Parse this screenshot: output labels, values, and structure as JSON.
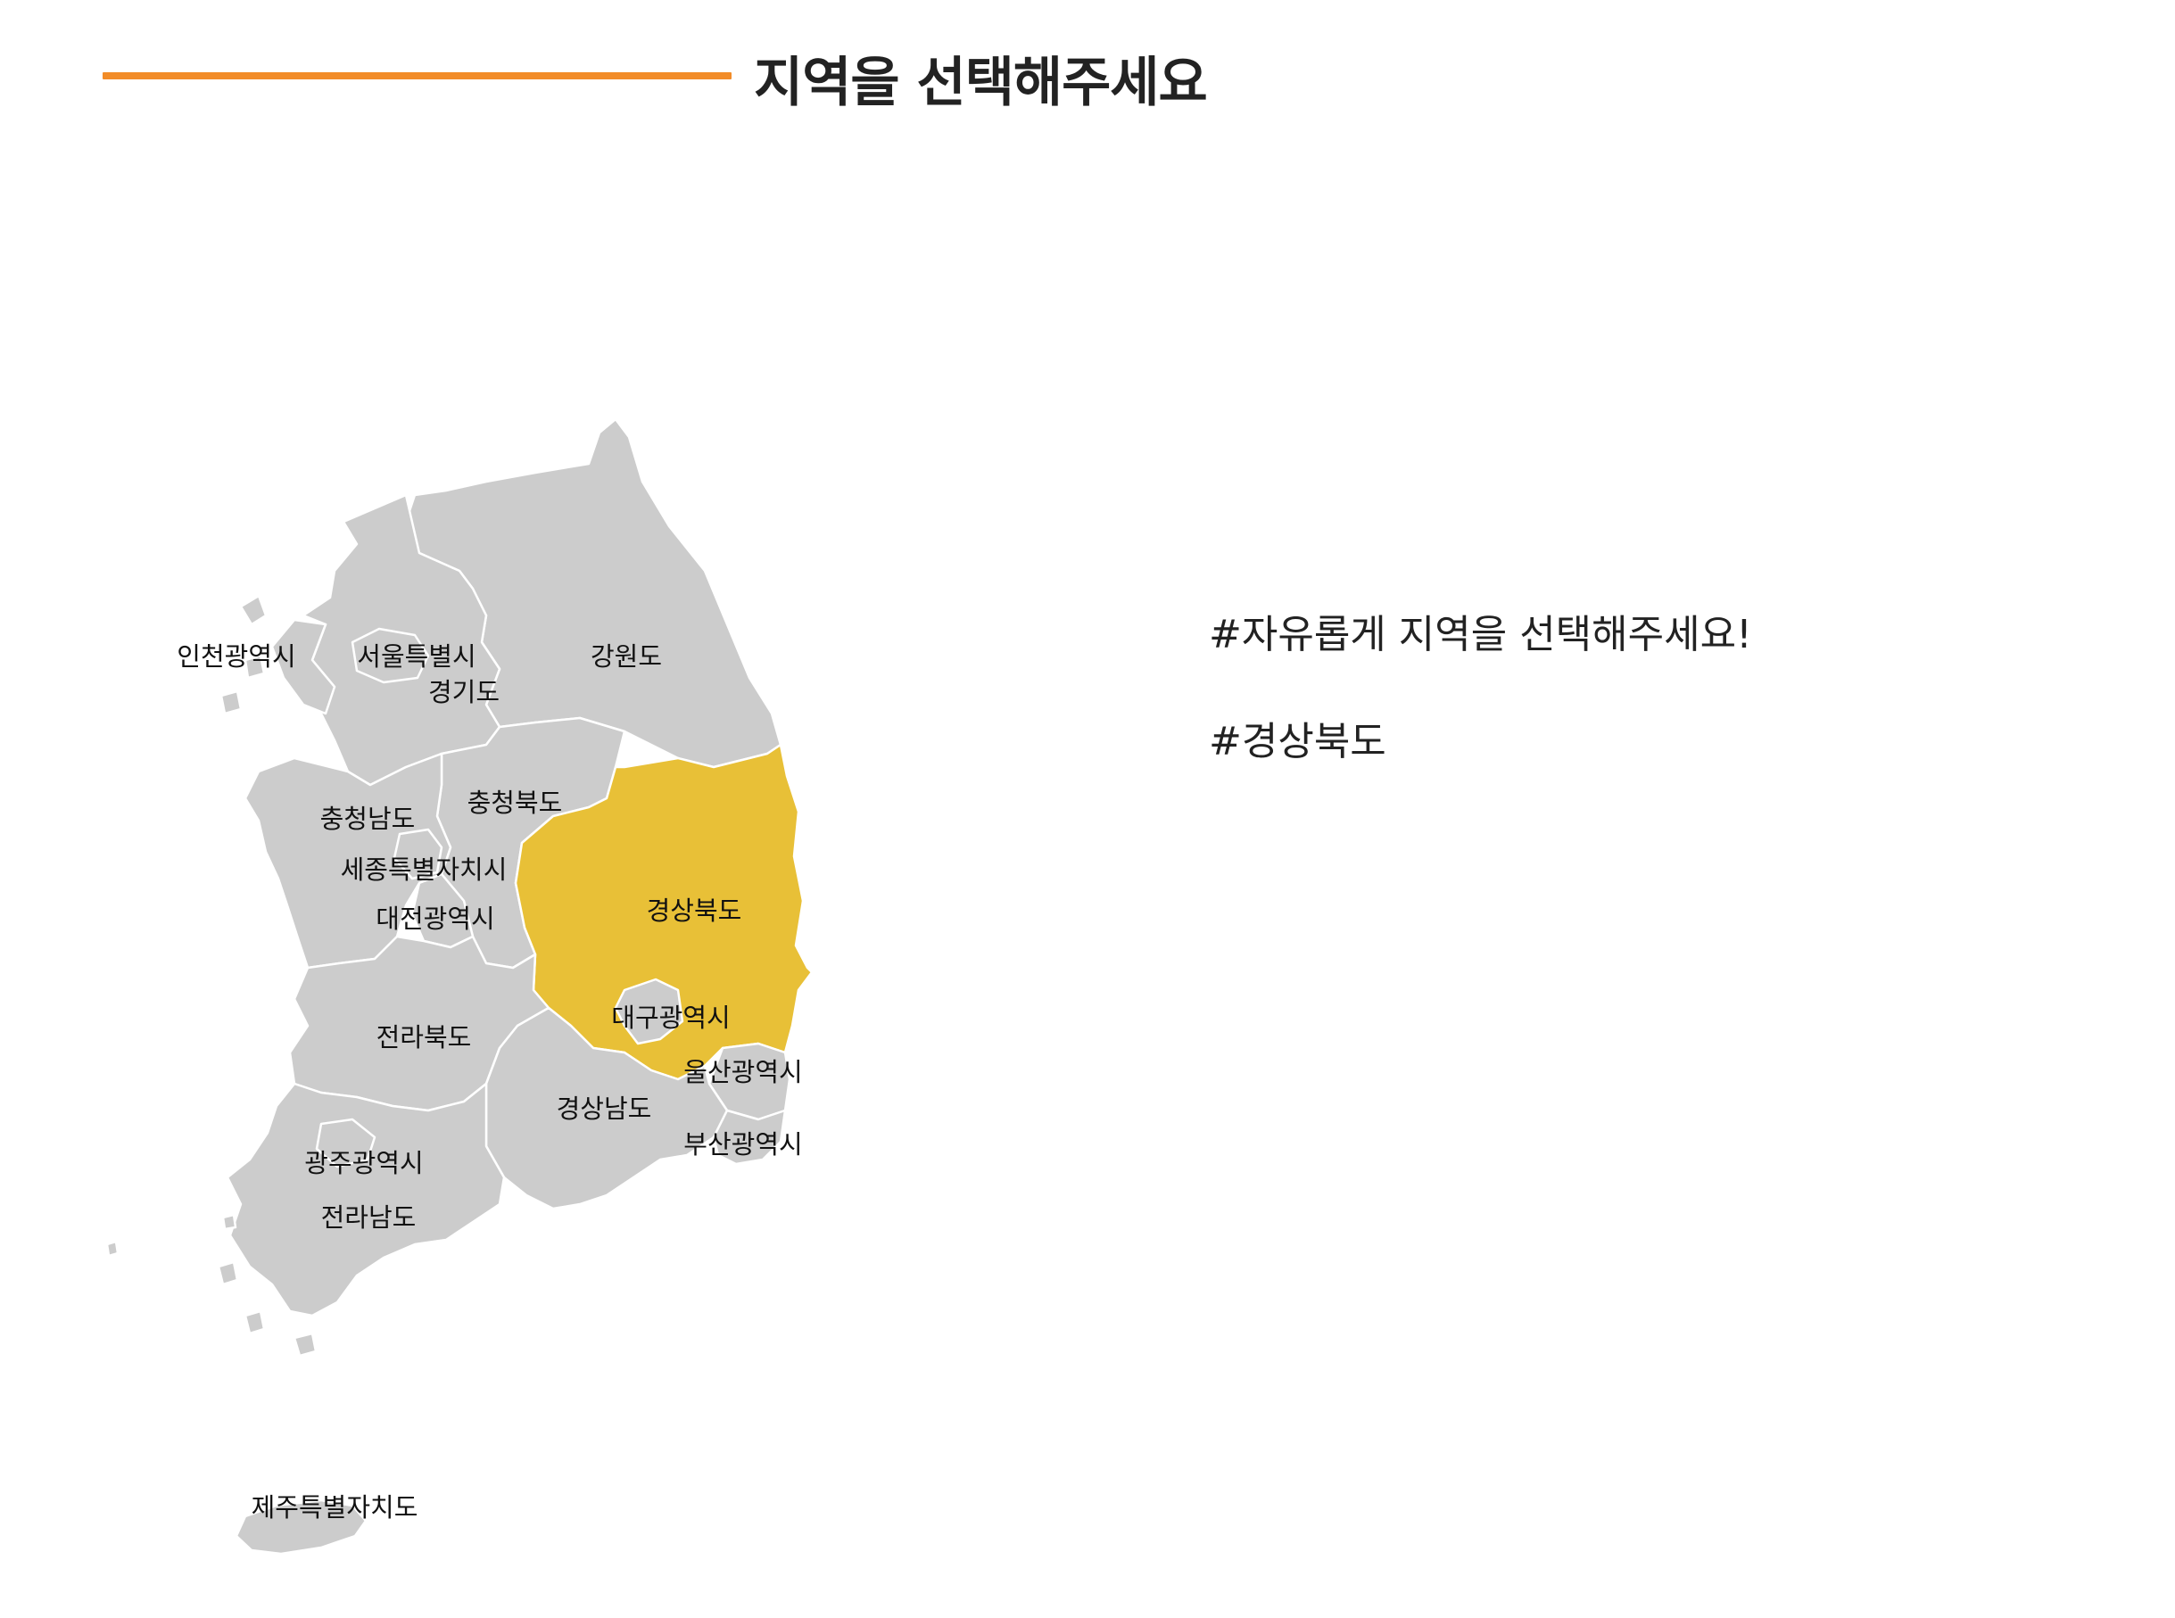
{
  "header": {
    "title": "지역을 선택해주세요"
  },
  "colors": {
    "accent_line": "#f28c28",
    "region_default": "#cccccc",
    "region_selected": "#e8c037",
    "text": "#222222"
  },
  "map": {
    "selected_region": "경상북도",
    "regions": {
      "incheon": "인천광역시",
      "seoul": "서울특별시",
      "gyeonggi": "경기도",
      "gangwon": "강원도",
      "chungbuk": "충청북도",
      "chungnam": "충청남도",
      "sejong": "세종특별자치시",
      "daejeon": "대전광역시",
      "gyeongbuk": "경상북도",
      "daegu": "대구광역시",
      "jeonbuk": "전라북도",
      "ulsan": "울산광역시",
      "gyeongnam": "경상남도",
      "busan": "부산광역시",
      "gwangju": "광주광역시",
      "jeonnam": "전라남도",
      "jeju": "제주특별자치도"
    }
  },
  "info": {
    "prompt_tag": "#자유롭게 지역을 선택해주세요!",
    "selected_tag": "#경상북도"
  }
}
